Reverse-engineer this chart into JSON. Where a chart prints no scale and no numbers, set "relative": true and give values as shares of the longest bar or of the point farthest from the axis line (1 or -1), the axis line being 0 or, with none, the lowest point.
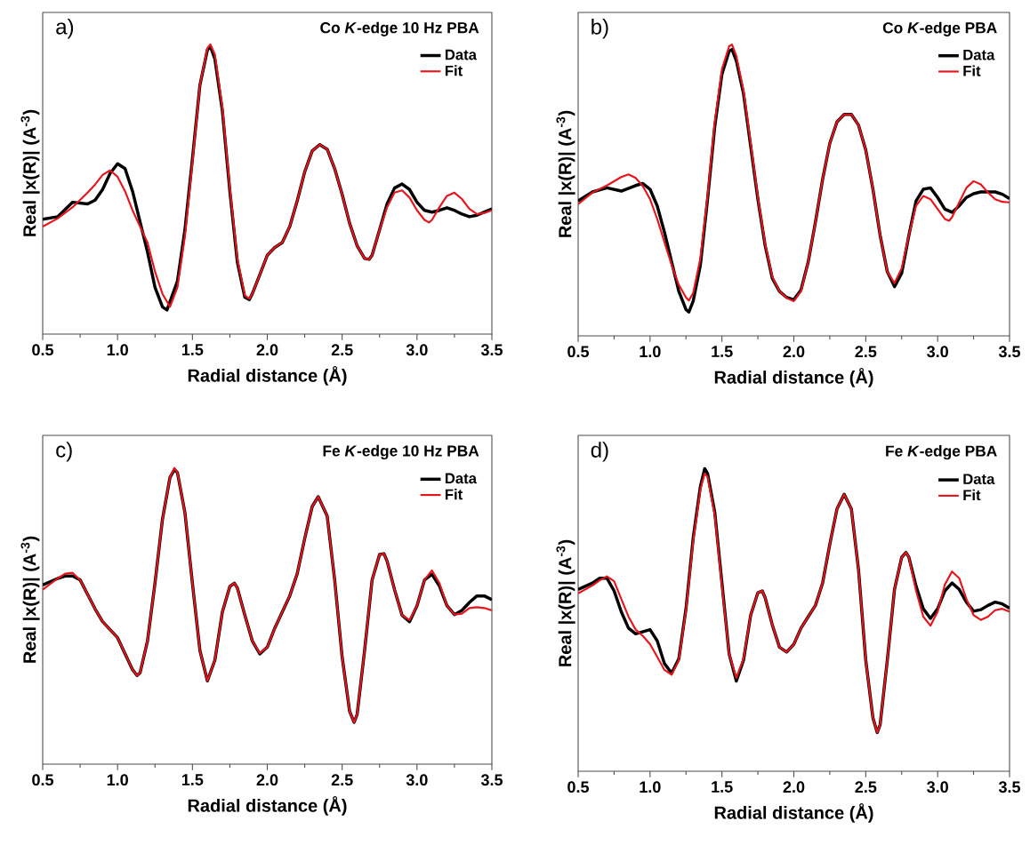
{
  "chart_data": [
    {
      "type": "line",
      "relative": true,
      "title": "Co *K*-edge 10 Hz PBA",
      "annotations": [
        "a)"
      ],
      "xlabel": "Radial distance (Å)",
      "ylabel": "Real |x(R)| (A$^{-3}$)",
      "xlim": [
        0.5,
        3.5
      ],
      "xticks": [
        {
          "value": 0.5,
          "label": "0.5"
        },
        {
          "value": 1.0,
          "label": "1.0"
        },
        {
          "value": 1.5,
          "label": "1.5"
        },
        {
          "value": 2.0,
          "label": "2.0"
        },
        {
          "value": 2.5,
          "label": "2.5"
        },
        {
          "value": 3.0,
          "label": "3.0"
        },
        {
          "value": 3.5,
          "label": "3.5"
        }
      ],
      "legend": "top right",
      "line_style": "solid",
      "series": [
        {
          "name": "Data",
          "color": "#000000",
          "x": [
            0.5,
            0.6,
            0.7,
            0.8,
            0.85,
            0.9,
            0.95,
            1.0,
            1.05,
            1.1,
            1.2,
            1.25,
            1.3,
            1.33,
            1.4,
            1.45,
            1.5,
            1.55,
            1.6,
            1.62,
            1.65,
            1.7,
            1.75,
            1.8,
            1.85,
            1.88,
            1.9,
            1.95,
            2.0,
            2.05,
            2.1,
            2.15,
            2.2,
            2.25,
            2.3,
            2.35,
            2.4,
            2.45,
            2.5,
            2.55,
            2.6,
            2.65,
            2.68,
            2.7,
            2.75,
            2.8,
            2.85,
            2.9,
            2.95,
            3.0,
            3.05,
            3.1,
            3.15,
            3.2,
            3.25,
            3.3,
            3.35,
            3.4,
            3.45,
            3.5
          ],
          "values": [
            0.396,
            0.405,
            0.455,
            0.449,
            0.462,
            0.499,
            0.554,
            0.588,
            0.571,
            0.493,
            0.283,
            0.161,
            0.094,
            0.083,
            0.183,
            0.36,
            0.604,
            0.859,
            0.981,
            0.992,
            0.949,
            0.771,
            0.493,
            0.249,
            0.127,
            0.119,
            0.139,
            0.205,
            0.272,
            0.299,
            0.316,
            0.371,
            0.46,
            0.56,
            0.632,
            0.654,
            0.638,
            0.571,
            0.482,
            0.382,
            0.305,
            0.261,
            0.258,
            0.272,
            0.36,
            0.449,
            0.504,
            0.518,
            0.499,
            0.455,
            0.427,
            0.421,
            0.427,
            0.436,
            0.427,
            0.414,
            0.405,
            0.41,
            0.421,
            0.432
          ]
        },
        {
          "name": "Fit",
          "color": "#e8141c",
          "x": [
            0.5,
            0.6,
            0.7,
            0.8,
            0.85,
            0.9,
            0.95,
            1.0,
            1.05,
            1.1,
            1.2,
            1.25,
            1.3,
            1.35,
            1.4,
            1.45,
            1.5,
            1.55,
            1.6,
            1.62,
            1.65,
            1.7,
            1.75,
            1.8,
            1.85,
            1.88,
            1.9,
            1.95,
            2.0,
            2.05,
            2.1,
            2.15,
            2.2,
            2.25,
            2.3,
            2.35,
            2.4,
            2.45,
            2.5,
            2.55,
            2.6,
            2.65,
            2.68,
            2.7,
            2.75,
            2.8,
            2.85,
            2.9,
            2.95,
            3.0,
            3.05,
            3.08,
            3.1,
            3.15,
            3.2,
            3.25,
            3.3,
            3.35,
            3.4,
            3.45,
            3.5
          ],
          "values": [
            0.371,
            0.399,
            0.438,
            0.488,
            0.516,
            0.549,
            0.565,
            0.543,
            0.493,
            0.427,
            0.316,
            0.216,
            0.139,
            0.094,
            0.161,
            0.338,
            0.593,
            0.859,
            0.987,
            1.0,
            0.965,
            0.782,
            0.504,
            0.261,
            0.133,
            0.122,
            0.139,
            0.205,
            0.272,
            0.299,
            0.316,
            0.371,
            0.46,
            0.56,
            0.632,
            0.654,
            0.638,
            0.571,
            0.482,
            0.382,
            0.305,
            0.261,
            0.258,
            0.272,
            0.36,
            0.438,
            0.488,
            0.496,
            0.471,
            0.427,
            0.394,
            0.385,
            0.394,
            0.438,
            0.477,
            0.488,
            0.466,
            0.432,
            0.414,
            0.418,
            0.427
          ]
        }
      ]
    },
    {
      "type": "line",
      "relative": true,
      "title": "Co *K*-edge PBA",
      "annotations": [
        "b)"
      ],
      "xlabel": "Radial distance (Å)",
      "ylabel": "Real |x(R)| (A$^{-3}$)",
      "xlim": [
        0.5,
        3.5
      ],
      "xticks": [
        {
          "value": 0.5,
          "label": "0.5"
        },
        {
          "value": 1.0,
          "label": "1.0"
        },
        {
          "value": 1.5,
          "label": "1.5"
        },
        {
          "value": 2.0,
          "label": "2.0"
        },
        {
          "value": 2.5,
          "label": "2.5"
        },
        {
          "value": 3.0,
          "label": "3.0"
        },
        {
          "value": 3.5,
          "label": "3.5"
        }
      ],
      "legend": "top right",
      "line_style": "solid",
      "series": [
        {
          "name": "Data",
          "color": "#000000",
          "x": [
            0.5,
            0.6,
            0.7,
            0.8,
            0.9,
            0.95,
            1.0,
            1.05,
            1.1,
            1.15,
            1.2,
            1.25,
            1.27,
            1.3,
            1.35,
            1.4,
            1.45,
            1.5,
            1.55,
            1.57,
            1.6,
            1.65,
            1.7,
            1.75,
            1.8,
            1.85,
            1.9,
            1.95,
            2.0,
            2.05,
            2.1,
            2.15,
            2.2,
            2.25,
            2.3,
            2.35,
            2.4,
            2.45,
            2.5,
            2.55,
            2.6,
            2.65,
            2.7,
            2.75,
            2.8,
            2.85,
            2.9,
            2.95,
            3.0,
            3.05,
            3.1,
            3.15,
            3.2,
            3.25,
            3.3,
            3.35,
            3.4,
            3.45,
            3.5
          ],
          "values": [
            0.463,
            0.494,
            0.508,
            0.497,
            0.516,
            0.523,
            0.503,
            0.446,
            0.356,
            0.254,
            0.153,
            0.09,
            0.082,
            0.119,
            0.243,
            0.469,
            0.718,
            0.898,
            0.977,
            0.983,
            0.944,
            0.831,
            0.65,
            0.469,
            0.311,
            0.198,
            0.153,
            0.132,
            0.124,
            0.158,
            0.254,
            0.39,
            0.537,
            0.661,
            0.734,
            0.76,
            0.76,
            0.723,
            0.638,
            0.503,
            0.345,
            0.22,
            0.169,
            0.215,
            0.345,
            0.463,
            0.503,
            0.508,
            0.475,
            0.435,
            0.424,
            0.446,
            0.475,
            0.488,
            0.494,
            0.494,
            0.494,
            0.486,
            0.471
          ]
        },
        {
          "name": "Fit",
          "color": "#e8141c",
          "x": [
            0.5,
            0.6,
            0.7,
            0.8,
            0.85,
            0.9,
            0.95,
            1.0,
            1.05,
            1.1,
            1.15,
            1.2,
            1.25,
            1.27,
            1.3,
            1.35,
            1.4,
            1.45,
            1.5,
            1.55,
            1.57,
            1.6,
            1.65,
            1.7,
            1.75,
            1.8,
            1.85,
            1.9,
            1.95,
            2.0,
            2.05,
            2.1,
            2.15,
            2.2,
            2.25,
            2.3,
            2.35,
            2.4,
            2.45,
            2.5,
            2.55,
            2.6,
            2.65,
            2.7,
            2.75,
            2.8,
            2.85,
            2.9,
            2.95,
            3.0,
            3.05,
            3.08,
            3.1,
            3.15,
            3.2,
            3.25,
            3.3,
            3.35,
            3.4,
            3.45,
            3.5
          ],
          "values": [
            0.452,
            0.492,
            0.516,
            0.545,
            0.554,
            0.542,
            0.514,
            0.469,
            0.401,
            0.322,
            0.243,
            0.175,
            0.132,
            0.121,
            0.147,
            0.266,
            0.48,
            0.734,
            0.915,
            0.994,
            1.0,
            0.961,
            0.842,
            0.661,
            0.475,
            0.316,
            0.203,
            0.153,
            0.13,
            0.119,
            0.153,
            0.254,
            0.39,
            0.537,
            0.661,
            0.734,
            0.76,
            0.76,
            0.723,
            0.638,
            0.503,
            0.345,
            0.22,
            0.181,
            0.232,
            0.345,
            0.446,
            0.48,
            0.469,
            0.435,
            0.401,
            0.395,
            0.407,
            0.458,
            0.508,
            0.531,
            0.52,
            0.492,
            0.469,
            0.46,
            0.458
          ]
        }
      ]
    },
    {
      "type": "line",
      "relative": true,
      "title": "Fe *K*-edge 10 Hz PBA",
      "annotations": [
        "c)"
      ],
      "xlabel": "Radial distance (Å)",
      "ylabel": "Real |x(R)| (A$^{-3}$)",
      "xlim": [
        0.5,
        3.5
      ],
      "xticks": [
        {
          "value": 0.5,
          "label": "0.5"
        },
        {
          "value": 1.0,
          "label": "1.0"
        },
        {
          "value": 1.5,
          "label": "1.5"
        },
        {
          "value": 2.0,
          "label": "2.0"
        },
        {
          "value": 2.5,
          "label": "2.5"
        },
        {
          "value": 3.0,
          "label": "3.0"
        },
        {
          "value": 3.5,
          "label": "3.5"
        }
      ],
      "legend": "top right",
      "line_style": "solid",
      "series": [
        {
          "name": "Data",
          "color": "#000000",
          "x": [
            0.5,
            0.6,
            0.65,
            0.7,
            0.75,
            0.8,
            0.85,
            0.9,
            0.95,
            1.0,
            1.05,
            1.1,
            1.13,
            1.15,
            1.2,
            1.25,
            1.3,
            1.35,
            1.38,
            1.4,
            1.45,
            1.5,
            1.55,
            1.6,
            1.65,
            1.7,
            1.75,
            1.78,
            1.8,
            1.85,
            1.9,
            1.95,
            2.0,
            2.05,
            2.1,
            2.15,
            2.2,
            2.25,
            2.3,
            2.34,
            2.4,
            2.45,
            2.5,
            2.55,
            2.58,
            2.6,
            2.65,
            2.7,
            2.75,
            2.78,
            2.8,
            2.85,
            2.9,
            2.95,
            3.0,
            3.05,
            3.1,
            3.15,
            3.2,
            3.25,
            3.3,
            3.35,
            3.4,
            3.45,
            3.5
          ],
          "values": [
            0.605,
            0.627,
            0.635,
            0.635,
            0.622,
            0.573,
            0.524,
            0.481,
            0.454,
            0.427,
            0.373,
            0.319,
            0.299,
            0.308,
            0.416,
            0.611,
            0.827,
            0.968,
            0.995,
            0.984,
            0.849,
            0.611,
            0.384,
            0.281,
            0.351,
            0.514,
            0.6,
            0.611,
            0.595,
            0.503,
            0.416,
            0.372,
            0.395,
            0.459,
            0.514,
            0.568,
            0.643,
            0.762,
            0.87,
            0.903,
            0.838,
            0.622,
            0.362,
            0.178,
            0.141,
            0.168,
            0.384,
            0.622,
            0.708,
            0.71,
            0.686,
            0.589,
            0.503,
            0.481,
            0.535,
            0.622,
            0.641,
            0.601,
            0.535,
            0.505,
            0.519,
            0.546,
            0.568,
            0.568,
            0.555
          ]
        },
        {
          "name": "Fit",
          "color": "#e8141c",
          "x": [
            0.5,
            0.6,
            0.65,
            0.7,
            0.75,
            0.8,
            0.85,
            0.9,
            0.95,
            1.0,
            1.05,
            1.1,
            1.13,
            1.15,
            1.2,
            1.25,
            1.3,
            1.35,
            1.38,
            1.4,
            1.45,
            1.5,
            1.55,
            1.6,
            1.65,
            1.7,
            1.75,
            1.78,
            1.8,
            1.85,
            1.9,
            1.95,
            2.0,
            2.05,
            2.1,
            2.15,
            2.2,
            2.25,
            2.3,
            2.34,
            2.4,
            2.45,
            2.5,
            2.55,
            2.58,
            2.6,
            2.65,
            2.7,
            2.75,
            2.78,
            2.8,
            2.85,
            2.9,
            2.95,
            3.0,
            3.05,
            3.1,
            3.15,
            3.2,
            3.25,
            3.3,
            3.35,
            3.4,
            3.45,
            3.5
          ],
          "values": [
            0.589,
            0.627,
            0.643,
            0.646,
            0.622,
            0.573,
            0.524,
            0.481,
            0.454,
            0.427,
            0.373,
            0.319,
            0.299,
            0.308,
            0.416,
            0.611,
            0.827,
            0.968,
            1.0,
            0.984,
            0.849,
            0.611,
            0.384,
            0.281,
            0.351,
            0.514,
            0.6,
            0.611,
            0.595,
            0.503,
            0.416,
            0.375,
            0.395,
            0.459,
            0.514,
            0.568,
            0.643,
            0.762,
            0.87,
            0.903,
            0.838,
            0.622,
            0.362,
            0.178,
            0.141,
            0.168,
            0.384,
            0.622,
            0.708,
            0.71,
            0.686,
            0.589,
            0.503,
            0.486,
            0.535,
            0.622,
            0.654,
            0.611,
            0.535,
            0.505,
            0.508,
            0.527,
            0.53,
            0.527,
            0.519
          ]
        }
      ]
    },
    {
      "type": "line",
      "relative": true,
      "title": "Fe *K*-edge PBA",
      "annotations": [
        "d)"
      ],
      "xlabel": "Radial distance (Å)",
      "ylabel": "Real |x(R)| (A$^{-3}$)",
      "xlim": [
        0.5,
        3.5
      ],
      "xticks": [
        {
          "value": 0.5,
          "label": "0.5"
        },
        {
          "value": 1.0,
          "label": "1.0"
        },
        {
          "value": 1.5,
          "label": "1.5"
        },
        {
          "value": 2.0,
          "label": "2.0"
        },
        {
          "value": 2.5,
          "label": "2.5"
        },
        {
          "value": 3.0,
          "label": "3.0"
        },
        {
          "value": 3.5,
          "label": "3.5"
        }
      ],
      "legend": "top right",
      "line_style": "solid",
      "series": [
        {
          "name": "Data",
          "color": "#000000",
          "x": [
            0.5,
            0.6,
            0.65,
            0.7,
            0.75,
            0.8,
            0.85,
            0.9,
            0.95,
            1.0,
            1.05,
            1.1,
            1.15,
            1.2,
            1.25,
            1.3,
            1.35,
            1.38,
            1.4,
            1.45,
            1.5,
            1.55,
            1.6,
            1.65,
            1.7,
            1.75,
            1.78,
            1.8,
            1.85,
            1.9,
            1.95,
            2.0,
            2.05,
            2.1,
            2.15,
            2.2,
            2.25,
            2.3,
            2.35,
            2.4,
            2.45,
            2.5,
            2.55,
            2.58,
            2.6,
            2.65,
            2.7,
            2.75,
            2.78,
            2.8,
            2.85,
            2.9,
            2.95,
            3.0,
            3.05,
            3.1,
            3.15,
            3.2,
            3.25,
            3.3,
            3.35,
            3.4,
            3.45,
            3.5
          ],
          "values": [
            0.601,
            0.622,
            0.638,
            0.638,
            0.596,
            0.527,
            0.473,
            0.454,
            0.461,
            0.468,
            0.431,
            0.356,
            0.324,
            0.371,
            0.537,
            0.771,
            0.941,
            1.0,
            0.984,
            0.856,
            0.622,
            0.388,
            0.298,
            0.367,
            0.516,
            0.59,
            0.596,
            0.574,
            0.484,
            0.41,
            0.394,
            0.42,
            0.473,
            0.511,
            0.548,
            0.622,
            0.75,
            0.867,
            0.915,
            0.867,
            0.665,
            0.367,
            0.176,
            0.128,
            0.154,
            0.367,
            0.601,
            0.707,
            0.723,
            0.707,
            0.612,
            0.537,
            0.505,
            0.537,
            0.596,
            0.622,
            0.601,
            0.559,
            0.529,
            0.534,
            0.548,
            0.559,
            0.553,
            0.539
          ]
        },
        {
          "name": "Fit",
          "color": "#e8141c",
          "x": [
            0.5,
            0.6,
            0.65,
            0.7,
            0.75,
            0.8,
            0.85,
            0.9,
            0.95,
            1.0,
            1.05,
            1.1,
            1.15,
            1.2,
            1.25,
            1.3,
            1.35,
            1.38,
            1.4,
            1.45,
            1.5,
            1.55,
            1.6,
            1.65,
            1.7,
            1.75,
            1.78,
            1.8,
            1.85,
            1.9,
            1.95,
            2.0,
            2.05,
            2.1,
            2.15,
            2.2,
            2.25,
            2.3,
            2.35,
            2.4,
            2.45,
            2.5,
            2.55,
            2.58,
            2.6,
            2.65,
            2.7,
            2.75,
            2.78,
            2.8,
            2.85,
            2.9,
            2.95,
            3.0,
            3.05,
            3.1,
            3.15,
            3.2,
            3.25,
            3.3,
            3.35,
            3.4,
            3.45,
            3.5
          ],
          "values": [
            0.588,
            0.614,
            0.631,
            0.644,
            0.628,
            0.569,
            0.511,
            0.468,
            0.447,
            0.42,
            0.378,
            0.335,
            0.319,
            0.366,
            0.532,
            0.761,
            0.931,
            0.984,
            0.973,
            0.846,
            0.612,
            0.388,
            0.309,
            0.372,
            0.516,
            0.59,
            0.596,
            0.574,
            0.484,
            0.41,
            0.394,
            0.42,
            0.473,
            0.511,
            0.548,
            0.622,
            0.75,
            0.867,
            0.915,
            0.867,
            0.665,
            0.367,
            0.176,
            0.128,
            0.154,
            0.367,
            0.601,
            0.707,
            0.723,
            0.707,
            0.596,
            0.511,
            0.481,
            0.527,
            0.617,
            0.66,
            0.638,
            0.569,
            0.516,
            0.5,
            0.511,
            0.532,
            0.537,
            0.527
          ]
        }
      ]
    }
  ]
}
